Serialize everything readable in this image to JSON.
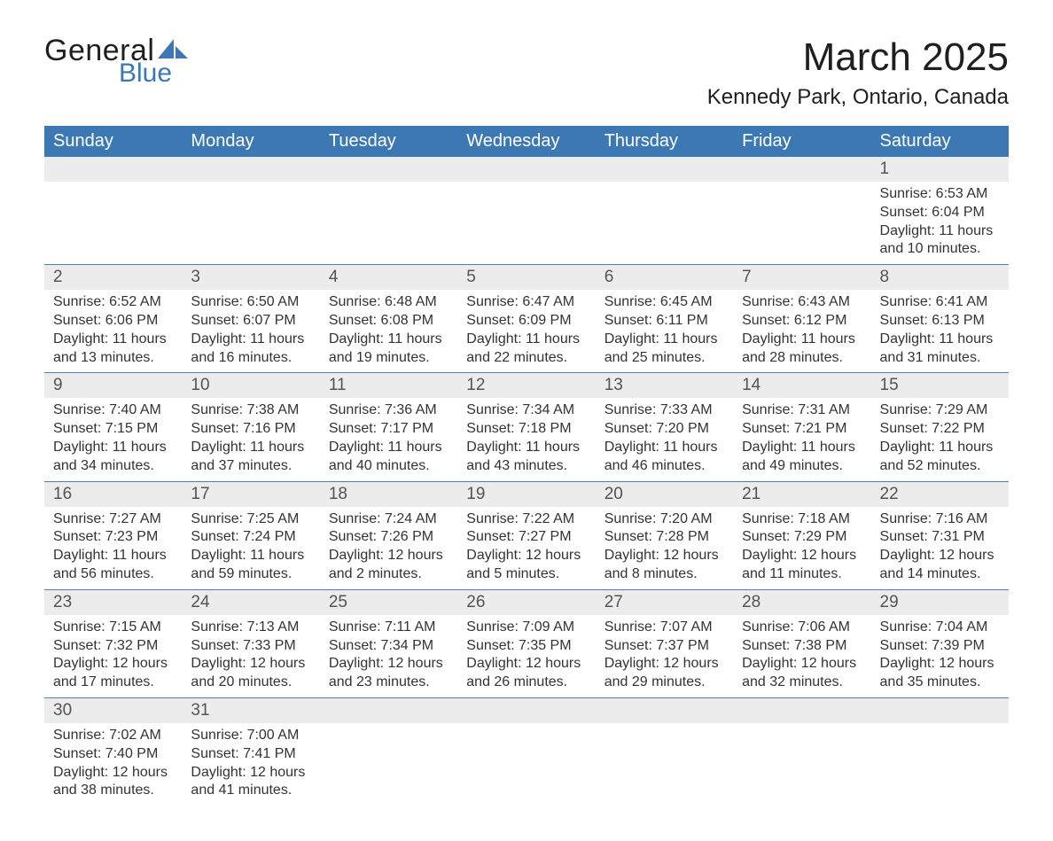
{
  "brand": {
    "text_general": "General",
    "text_blue": "Blue",
    "shape_color": "#3c78b4",
    "text_dark_color": "#1f1f1f"
  },
  "title": "March 2025",
  "location": "Kennedy Park, Ontario, Canada",
  "colors": {
    "header_bg": "#3c78b4",
    "header_text": "#ffffff",
    "daynum_bg": "#ececec",
    "daynum_text": "#545454",
    "body_text": "#333333",
    "row_sep": "#4a7fb8",
    "page_bg": "#ffffff"
  },
  "typography": {
    "title_fontsize": 44,
    "location_fontsize": 24,
    "header_fontsize": 20,
    "daynum_fontsize": 19,
    "cell_fontsize": 16
  },
  "day_headers": [
    "Sunday",
    "Monday",
    "Tuesday",
    "Wednesday",
    "Thursday",
    "Friday",
    "Saturday"
  ],
  "weeks": [
    {
      "nums": [
        "",
        "",
        "",
        "",
        "",
        "",
        "1"
      ],
      "sunrise": [
        "",
        "",
        "",
        "",
        "",
        "",
        "Sunrise: 6:53 AM"
      ],
      "sunset": [
        "",
        "",
        "",
        "",
        "",
        "",
        "Sunset: 6:04 PM"
      ],
      "day1": [
        "",
        "",
        "",
        "",
        "",
        "",
        "Daylight: 11 hours"
      ],
      "day2": [
        "",
        "",
        "",
        "",
        "",
        "",
        "and 10 minutes."
      ]
    },
    {
      "nums": [
        "2",
        "3",
        "4",
        "5",
        "6",
        "7",
        "8"
      ],
      "sunrise": [
        "Sunrise: 6:52 AM",
        "Sunrise: 6:50 AM",
        "Sunrise: 6:48 AM",
        "Sunrise: 6:47 AM",
        "Sunrise: 6:45 AM",
        "Sunrise: 6:43 AM",
        "Sunrise: 6:41 AM"
      ],
      "sunset": [
        "Sunset: 6:06 PM",
        "Sunset: 6:07 PM",
        "Sunset: 6:08 PM",
        "Sunset: 6:09 PM",
        "Sunset: 6:11 PM",
        "Sunset: 6:12 PM",
        "Sunset: 6:13 PM"
      ],
      "day1": [
        "Daylight: 11 hours",
        "Daylight: 11 hours",
        "Daylight: 11 hours",
        "Daylight: 11 hours",
        "Daylight: 11 hours",
        "Daylight: 11 hours",
        "Daylight: 11 hours"
      ],
      "day2": [
        "and 13 minutes.",
        "and 16 minutes.",
        "and 19 minutes.",
        "and 22 minutes.",
        "and 25 minutes.",
        "and 28 minutes.",
        "and 31 minutes."
      ]
    },
    {
      "nums": [
        "9",
        "10",
        "11",
        "12",
        "13",
        "14",
        "15"
      ],
      "sunrise": [
        "Sunrise: 7:40 AM",
        "Sunrise: 7:38 AM",
        "Sunrise: 7:36 AM",
        "Sunrise: 7:34 AM",
        "Sunrise: 7:33 AM",
        "Sunrise: 7:31 AM",
        "Sunrise: 7:29 AM"
      ],
      "sunset": [
        "Sunset: 7:15 PM",
        "Sunset: 7:16 PM",
        "Sunset: 7:17 PM",
        "Sunset: 7:18 PM",
        "Sunset: 7:20 PM",
        "Sunset: 7:21 PM",
        "Sunset: 7:22 PM"
      ],
      "day1": [
        "Daylight: 11 hours",
        "Daylight: 11 hours",
        "Daylight: 11 hours",
        "Daylight: 11 hours",
        "Daylight: 11 hours",
        "Daylight: 11 hours",
        "Daylight: 11 hours"
      ],
      "day2": [
        "and 34 minutes.",
        "and 37 minutes.",
        "and 40 minutes.",
        "and 43 minutes.",
        "and 46 minutes.",
        "and 49 minutes.",
        "and 52 minutes."
      ]
    },
    {
      "nums": [
        "16",
        "17",
        "18",
        "19",
        "20",
        "21",
        "22"
      ],
      "sunrise": [
        "Sunrise: 7:27 AM",
        "Sunrise: 7:25 AM",
        "Sunrise: 7:24 AM",
        "Sunrise: 7:22 AM",
        "Sunrise: 7:20 AM",
        "Sunrise: 7:18 AM",
        "Sunrise: 7:16 AM"
      ],
      "sunset": [
        "Sunset: 7:23 PM",
        "Sunset: 7:24 PM",
        "Sunset: 7:26 PM",
        "Sunset: 7:27 PM",
        "Sunset: 7:28 PM",
        "Sunset: 7:29 PM",
        "Sunset: 7:31 PM"
      ],
      "day1": [
        "Daylight: 11 hours",
        "Daylight: 11 hours",
        "Daylight: 12 hours",
        "Daylight: 12 hours",
        "Daylight: 12 hours",
        "Daylight: 12 hours",
        "Daylight: 12 hours"
      ],
      "day2": [
        "and 56 minutes.",
        "and 59 minutes.",
        "and 2 minutes.",
        "and 5 minutes.",
        "and 8 minutes.",
        "and 11 minutes.",
        "and 14 minutes."
      ]
    },
    {
      "nums": [
        "23",
        "24",
        "25",
        "26",
        "27",
        "28",
        "29"
      ],
      "sunrise": [
        "Sunrise: 7:15 AM",
        "Sunrise: 7:13 AM",
        "Sunrise: 7:11 AM",
        "Sunrise: 7:09 AM",
        "Sunrise: 7:07 AM",
        "Sunrise: 7:06 AM",
        "Sunrise: 7:04 AM"
      ],
      "sunset": [
        "Sunset: 7:32 PM",
        "Sunset: 7:33 PM",
        "Sunset: 7:34 PM",
        "Sunset: 7:35 PM",
        "Sunset: 7:37 PM",
        "Sunset: 7:38 PM",
        "Sunset: 7:39 PM"
      ],
      "day1": [
        "Daylight: 12 hours",
        "Daylight: 12 hours",
        "Daylight: 12 hours",
        "Daylight: 12 hours",
        "Daylight: 12 hours",
        "Daylight: 12 hours",
        "Daylight: 12 hours"
      ],
      "day2": [
        "and 17 minutes.",
        "and 20 minutes.",
        "and 23 minutes.",
        "and 26 minutes.",
        "and 29 minutes.",
        "and 32 minutes.",
        "and 35 minutes."
      ]
    },
    {
      "nums": [
        "30",
        "31",
        "",
        "",
        "",
        "",
        ""
      ],
      "sunrise": [
        "Sunrise: 7:02 AM",
        "Sunrise: 7:00 AM",
        "",
        "",
        "",
        "",
        ""
      ],
      "sunset": [
        "Sunset: 7:40 PM",
        "Sunset: 7:41 PM",
        "",
        "",
        "",
        "",
        ""
      ],
      "day1": [
        "Daylight: 12 hours",
        "Daylight: 12 hours",
        "",
        "",
        "",
        "",
        ""
      ],
      "day2": [
        "and 38 minutes.",
        "and 41 minutes.",
        "",
        "",
        "",
        "",
        ""
      ]
    }
  ]
}
